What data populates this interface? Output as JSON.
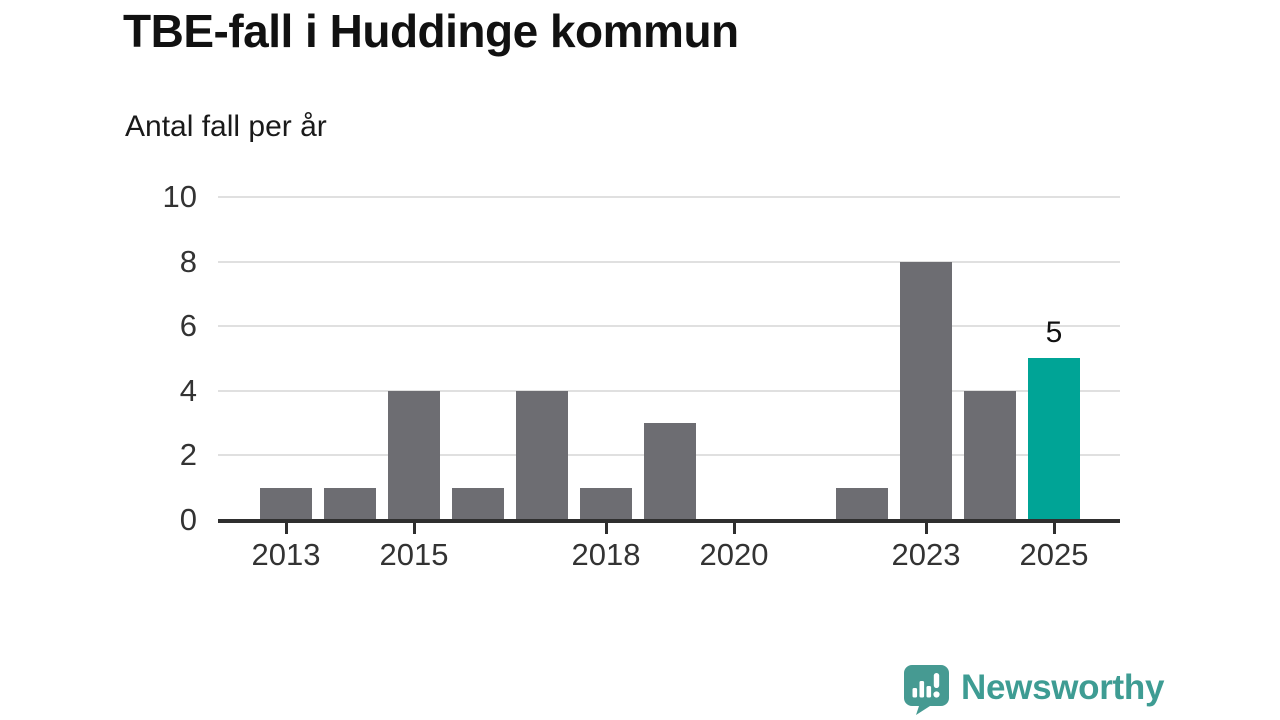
{
  "header": {
    "title": "TBE-fall i Huddinge kommun",
    "subtitle": "Antal fall per år"
  },
  "chart_data": {
    "type": "bar",
    "title": "TBE-fall i Huddinge kommun",
    "subtitle": "Antal fall per år",
    "categories": [
      "2013",
      "2014",
      "2015",
      "2016",
      "2017",
      "2018",
      "2019",
      "2020",
      "2021",
      "2022",
      "2023",
      "2024",
      "2025"
    ],
    "values": [
      1,
      1,
      4,
      1,
      4,
      1,
      3,
      0,
      0,
      1,
      8,
      4,
      5
    ],
    "x_tick_labels": [
      "2013",
      "2015",
      "2018",
      "2020",
      "2023",
      "2025"
    ],
    "y_ticks": [
      0,
      2,
      4,
      6,
      8,
      10
    ],
    "ylim": [
      0,
      10
    ],
    "xlabel": "",
    "ylabel": "Antal fall per år",
    "grid": "horizontal",
    "legend": "none",
    "highlight_category": "2025",
    "highlight_value_label": "5",
    "colors": {
      "bar": "#6d6d72",
      "highlight_bar": "#00a496",
      "gridline": "#e0e0e0",
      "axis": "#2f2f2f",
      "tick_label": "#333333"
    }
  },
  "footer": {
    "logo_text": "Newsworthy",
    "logo_icon": "newsworthy-speech-bubble-chart-icon",
    "logo_color": "#3e9c93",
    "logo_icon_color": "#469a92"
  }
}
